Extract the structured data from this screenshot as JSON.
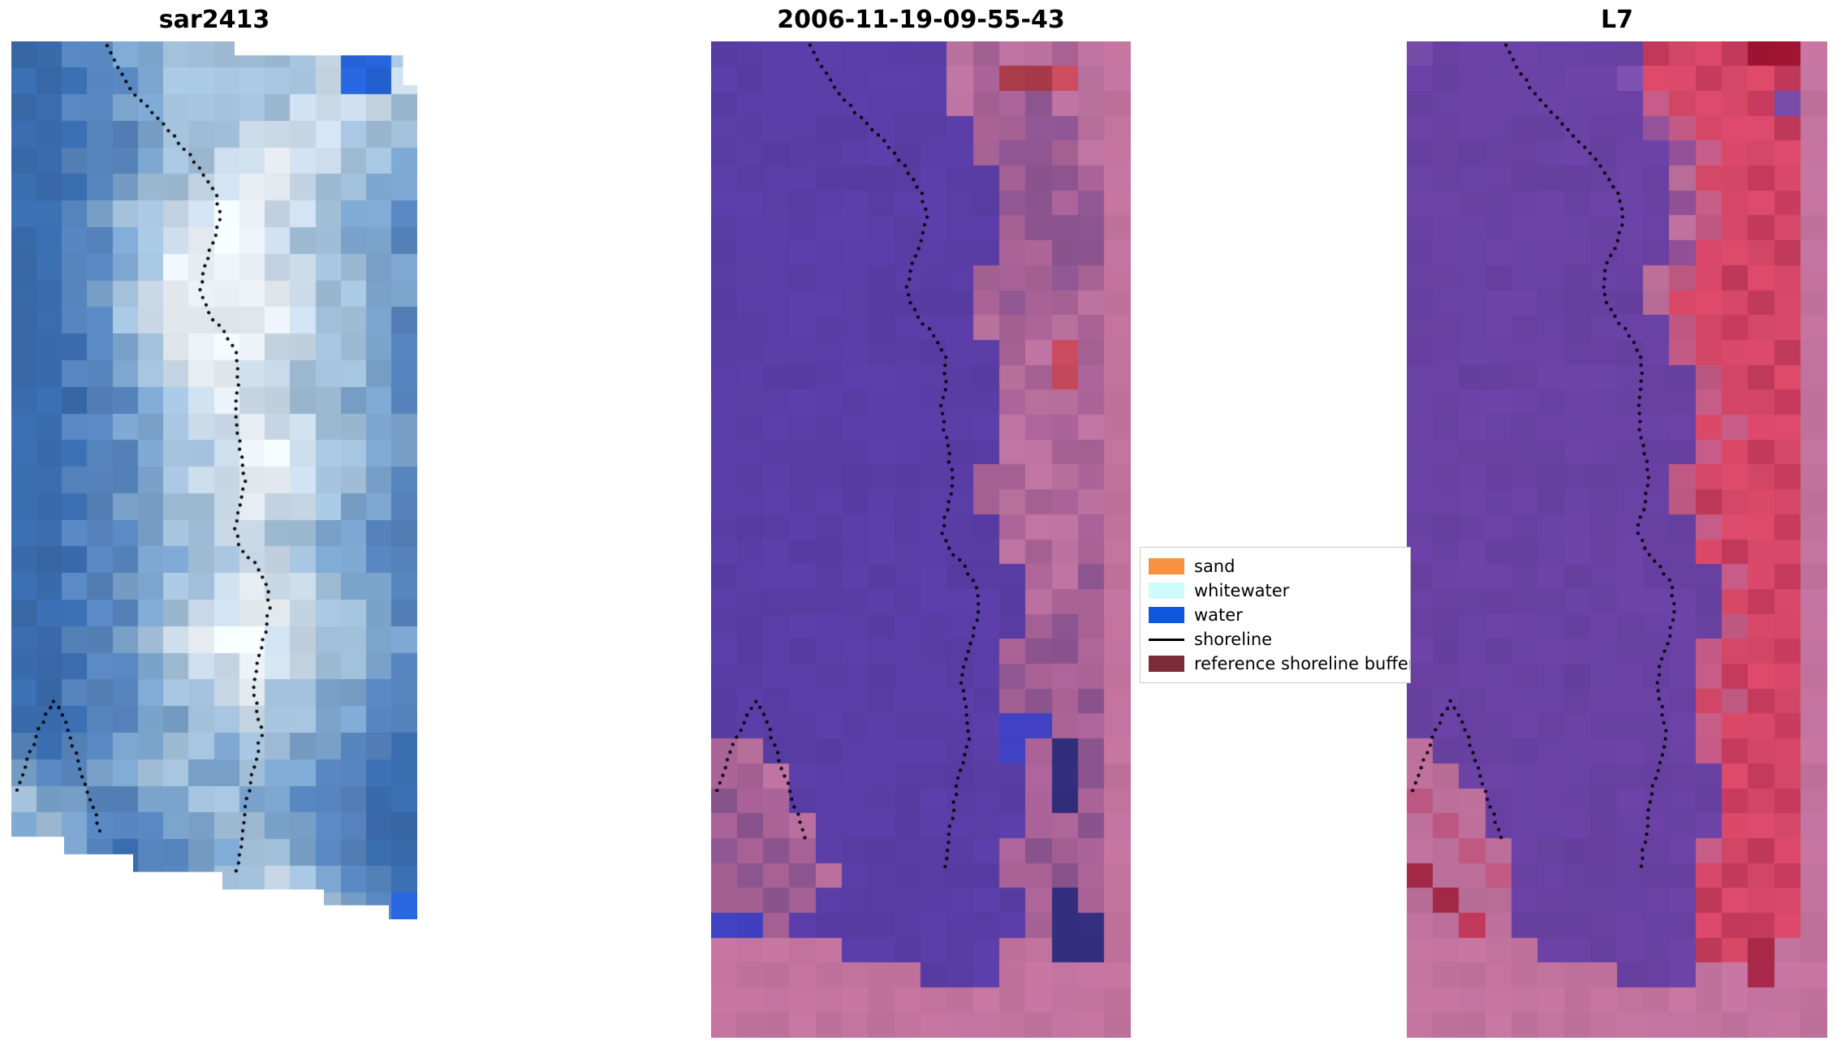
{
  "figure": {
    "background": "#ffffff"
  },
  "legend": {
    "items": [
      {
        "label": "sand",
        "color": "#f79240",
        "type": "patch"
      },
      {
        "label": "whitewater",
        "color": "#ccfcfc",
        "type": "patch"
      },
      {
        "label": "water",
        "color": "#0f56e0",
        "type": "patch"
      },
      {
        "label": "shoreline",
        "color": "#000000",
        "type": "line"
      },
      {
        "label": "reference shoreline buffer",
        "color": "#7c2b36",
        "type": "patch"
      }
    ]
  },
  "shorelines": {
    "classified": {
      "main": [
        [
          0.235,
          0.004
        ],
        [
          0.262,
          0.025
        ],
        [
          0.3,
          0.05
        ],
        [
          0.352,
          0.075
        ],
        [
          0.41,
          0.1
        ],
        [
          0.46,
          0.125
        ],
        [
          0.5,
          0.15
        ],
        [
          0.515,
          0.175
        ],
        [
          0.5,
          0.2
        ],
        [
          0.476,
          0.225
        ],
        [
          0.466,
          0.25
        ],
        [
          0.49,
          0.275
        ],
        [
          0.53,
          0.295
        ],
        [
          0.556,
          0.315
        ],
        [
          0.56,
          0.34
        ],
        [
          0.55,
          0.365
        ],
        [
          0.556,
          0.39
        ],
        [
          0.566,
          0.415
        ],
        [
          0.576,
          0.44
        ],
        [
          0.566,
          0.465
        ],
        [
          0.55,
          0.49
        ],
        [
          0.566,
          0.51
        ],
        [
          0.6,
          0.525
        ],
        [
          0.63,
          0.545
        ],
        [
          0.636,
          0.57
        ],
        [
          0.625,
          0.595
        ],
        [
          0.606,
          0.62
        ],
        [
          0.596,
          0.645
        ],
        [
          0.606,
          0.67
        ],
        [
          0.616,
          0.695
        ],
        [
          0.606,
          0.715
        ],
        [
          0.59,
          0.74
        ],
        [
          0.578,
          0.765
        ],
        [
          0.57,
          0.79
        ],
        [
          0.562,
          0.815
        ],
        [
          0.556,
          0.835
        ]
      ],
      "hill": [
        [
          0.015,
          0.752
        ],
        [
          0.04,
          0.722
        ],
        [
          0.062,
          0.697
        ],
        [
          0.085,
          0.676
        ],
        [
          0.106,
          0.662
        ],
        [
          0.126,
          0.676
        ],
        [
          0.146,
          0.7
        ],
        [
          0.166,
          0.726
        ],
        [
          0.186,
          0.751
        ],
        [
          0.206,
          0.776
        ],
        [
          0.226,
          0.8
        ]
      ]
    },
    "sar": {
      "main": [
        [
          0.235,
          0.005
        ],
        [
          0.262,
          0.028
        ],
        [
          0.3,
          0.057
        ],
        [
          0.352,
          0.085
        ],
        [
          0.41,
          0.113
        ],
        [
          0.46,
          0.142
        ],
        [
          0.5,
          0.17
        ],
        [
          0.515,
          0.198
        ],
        [
          0.5,
          0.227
        ],
        [
          0.476,
          0.255
        ],
        [
          0.466,
          0.284
        ],
        [
          0.49,
          0.312
        ],
        [
          0.53,
          0.335
        ],
        [
          0.556,
          0.357
        ],
        [
          0.56,
          0.386
        ],
        [
          0.55,
          0.414
        ],
        [
          0.556,
          0.442
        ],
        [
          0.566,
          0.471
        ],
        [
          0.576,
          0.499
        ],
        [
          0.566,
          0.527
        ],
        [
          0.55,
          0.556
        ],
        [
          0.566,
          0.578
        ],
        [
          0.6,
          0.595
        ],
        [
          0.63,
          0.618
        ],
        [
          0.636,
          0.646
        ],
        [
          0.625,
          0.675
        ],
        [
          0.606,
          0.703
        ],
        [
          0.596,
          0.731
        ],
        [
          0.606,
          0.76
        ],
        [
          0.616,
          0.788
        ],
        [
          0.606,
          0.811
        ],
        [
          0.59,
          0.839
        ],
        [
          0.578,
          0.868
        ],
        [
          0.57,
          0.896
        ],
        [
          0.562,
          0.924
        ],
        [
          0.556,
          0.947
        ]
      ],
      "hill": [
        [
          0.015,
          0.853
        ],
        [
          0.04,
          0.819
        ],
        [
          0.062,
          0.79
        ],
        [
          0.085,
          0.767
        ],
        [
          0.106,
          0.751
        ],
        [
          0.126,
          0.767
        ],
        [
          0.146,
          0.794
        ],
        [
          0.166,
          0.823
        ],
        [
          0.186,
          0.852
        ],
        [
          0.206,
          0.88
        ],
        [
          0.226,
          0.907
        ]
      ]
    }
  },
  "chart_data": [
    {
      "type": "heatmap",
      "title": "sar2413",
      "shoreline": "sar",
      "jitter": 0.06,
      "palette": {
        "0": "#2a5b9e",
        "1": "#3a6cae",
        "2": "#5684bd",
        "3": "#7ba4cd",
        "4": "#a3c0da",
        "5": "#c9d9e8",
        "6": "#ecf2f7",
        "7": "#2563d8"
      },
      "rows": [
        "1122334444445774",
        "1112234444445775",
        "1122334444455554",
        "1112234445555444",
        "1122234455655443",
        "1112344556654433",
        "1123445566554332",
        "1122345666544332",
        "1122346666554433",
        "1123456666654433",
        "1122456666654432",
        "1112346666554432",
        "1122345665544432",
        "1112234565544332",
        "1122334556554433",
        "1112234456654433",
        "1122234556654432",
        "1112334456554332",
        "1122234455443322",
        "1112233445543322",
        "1122334456554332",
        "1112234556654432",
        "1122345666554433",
        "1112234556554432",
        "1122234456443322",
        "1112233445443322",
        "2122334434433221",
        "3223344334332211",
        "4332233443322211",
        "3432223344332211",
        "2332122334432211",
        "1721122344543221",
        "1122123445554327"
      ]
    },
    {
      "type": "heatmap",
      "title": "2006-11-19-09-55-43",
      "shoreline": "classified",
      "jitter": 0.035,
      "palette": {
        "0": "#5a3da6",
        "1": "#bc72a0",
        "2": "#a86296",
        "3": "#8d5590",
        "4": "#c2739e",
        "5": "#c84a5c",
        "6": "#a83a48",
        "7": "#4040c0",
        "8": "#332e7e",
        "9": "#6b49b0"
      },
      "rows": [
        "0000000001211214",
        "0000000001266514",
        "0000000001223114",
        "0000000000223314",
        "0000000000233214",
        "0000000000023324",
        "0000000000033234",
        "0000000000023334",
        "0000000000022334",
        "0000000000222324",
        "0000000000232214",
        "0000000000122124",
        "0000000000021524",
        "0000000000012524",
        "0000000000021124",
        "0000000000012214",
        "0000000000011224",
        "0000000000221124",
        "0000000000212214",
        "0000000000021124",
        "0000000000012124",
        "0000000000002134",
        "0000000000001224",
        "0000000000002324",
        "0000000000023324",
        "0000000000032224",
        "0000000000023234",
        "0000000000077224",
        "2100000000072834",
        "2210000000002834",
        "3220000000002824",
        "2321000000002234",
        "3232000000023224",
        "2323100000022324",
        "2232000000002824",
        "7720000000002884",
        "4444400000044884",
        "4444444400044444",
        "4444444444444444",
        "4444444444444444"
      ]
    },
    {
      "type": "heatmap",
      "title": "L7",
      "shoreline": "classified",
      "jitter": 0.035,
      "palette": {
        "0": "#6a41a4",
        "1": "#d84868",
        "2": "#c43a5c",
        "3": "#c25a84",
        "4": "#c2739e",
        "5": "#9e1430",
        "6": "#bc6f9a",
        "7": "#94519a",
        "8": "#a82848",
        "9": "#7b4fae"
      },
      "rows": [
        "9000000002112554",
        "0000000091121124",
        "0000000003111294",
        "0000000007311124",
        "0000000000731114",
        "0000000000611214",
        "0000000000731124",
        "0000000000631214",
        "0000000000711124",
        "0000000006312114",
        "0000000006111214",
        "0000000000312114",
        "0000000000311124",
        "0000000000031214",
        "0000000000031124",
        "0000000000013114",
        "0000000000031214",
        "0000000000311124",
        "0000000000321114",
        "0000000000031124",
        "0000000000012114",
        "0000000000003124",
        "0000000000001214",
        "0000000000003114",
        "0000000000031124",
        "0000000000032114",
        "0000000000013214",
        "0000000000031124",
        "6000000000032114",
        "6600000000001214",
        "3660000000002124",
        "6360000000001114",
        "6636000000031214",
        "8663000000012124",
        "6866000000021114",
        "6626000000012214",
        "4444600000021844",
        "4444444400044844",
        "4444444444444444",
        "4444444444444444"
      ]
    }
  ]
}
